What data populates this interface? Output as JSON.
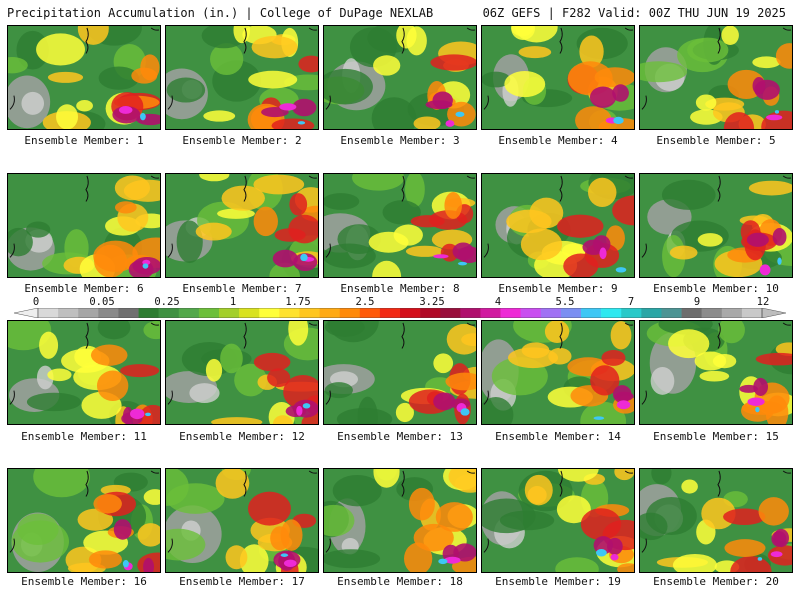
{
  "header": {
    "left": "Precipitation Accumulation (in.) | College of DuPage NEXLAB",
    "right": "06Z GEFS | F282 Valid: 00Z THU JUN 19 2025"
  },
  "colorbar": {
    "labels": [
      "0",
      "0.05",
      "0.25",
      "1",
      "1.75",
      "2.5",
      "3.25",
      "4",
      "5.5",
      "7",
      "9",
      "12"
    ],
    "colors": [
      "#d9d9d9",
      "#bfbfbf",
      "#a6a6a6",
      "#8a8a8a",
      "#707070",
      "#2e7d32",
      "#3f9142",
      "#52a84a",
      "#6cbf3a",
      "#a3cf2a",
      "#d9e21f",
      "#ffff3a",
      "#ffe22e",
      "#ffc61f",
      "#ffaa14",
      "#ff8a0a",
      "#ff5a0a",
      "#f22a14",
      "#d40f1a",
      "#b00a26",
      "#990f3c",
      "#b0106e",
      "#d11aa0",
      "#ee2ad6",
      "#c94ef0",
      "#a072f4",
      "#7b8ff2",
      "#3ec7f5",
      "#2ee8f0",
      "#28c9c9",
      "#2aa6a6",
      "#4c9494",
      "#6e6e6e",
      "#8c8c8c",
      "#a9a9a9",
      "#c9c9c9"
    ]
  },
  "members": [
    {
      "label": "Ensemble Member: 1"
    },
    {
      "label": "Ensemble Member: 2"
    },
    {
      "label": "Ensemble Member: 3"
    },
    {
      "label": "Ensemble Member: 4"
    },
    {
      "label": "Ensemble Member: 5"
    },
    {
      "label": "Ensemble Member: 6"
    },
    {
      "label": "Ensemble Member: 7"
    },
    {
      "label": "Ensemble Member: 8"
    },
    {
      "label": "Ensemble Member: 9"
    },
    {
      "label": "Ensemble Member: 10"
    },
    {
      "label": "Ensemble Member: 11"
    },
    {
      "label": "Ensemble Member: 12"
    },
    {
      "label": "Ensemble Member: 13"
    },
    {
      "label": "Ensemble Member: 14"
    },
    {
      "label": "Ensemble Member: 15"
    },
    {
      "label": "Ensemble Member: 16"
    },
    {
      "label": "Ensemble Member: 17"
    },
    {
      "label": "Ensemble Member: 18"
    },
    {
      "label": "Ensemble Member: 19"
    },
    {
      "label": "Ensemble Member: 20"
    }
  ]
}
